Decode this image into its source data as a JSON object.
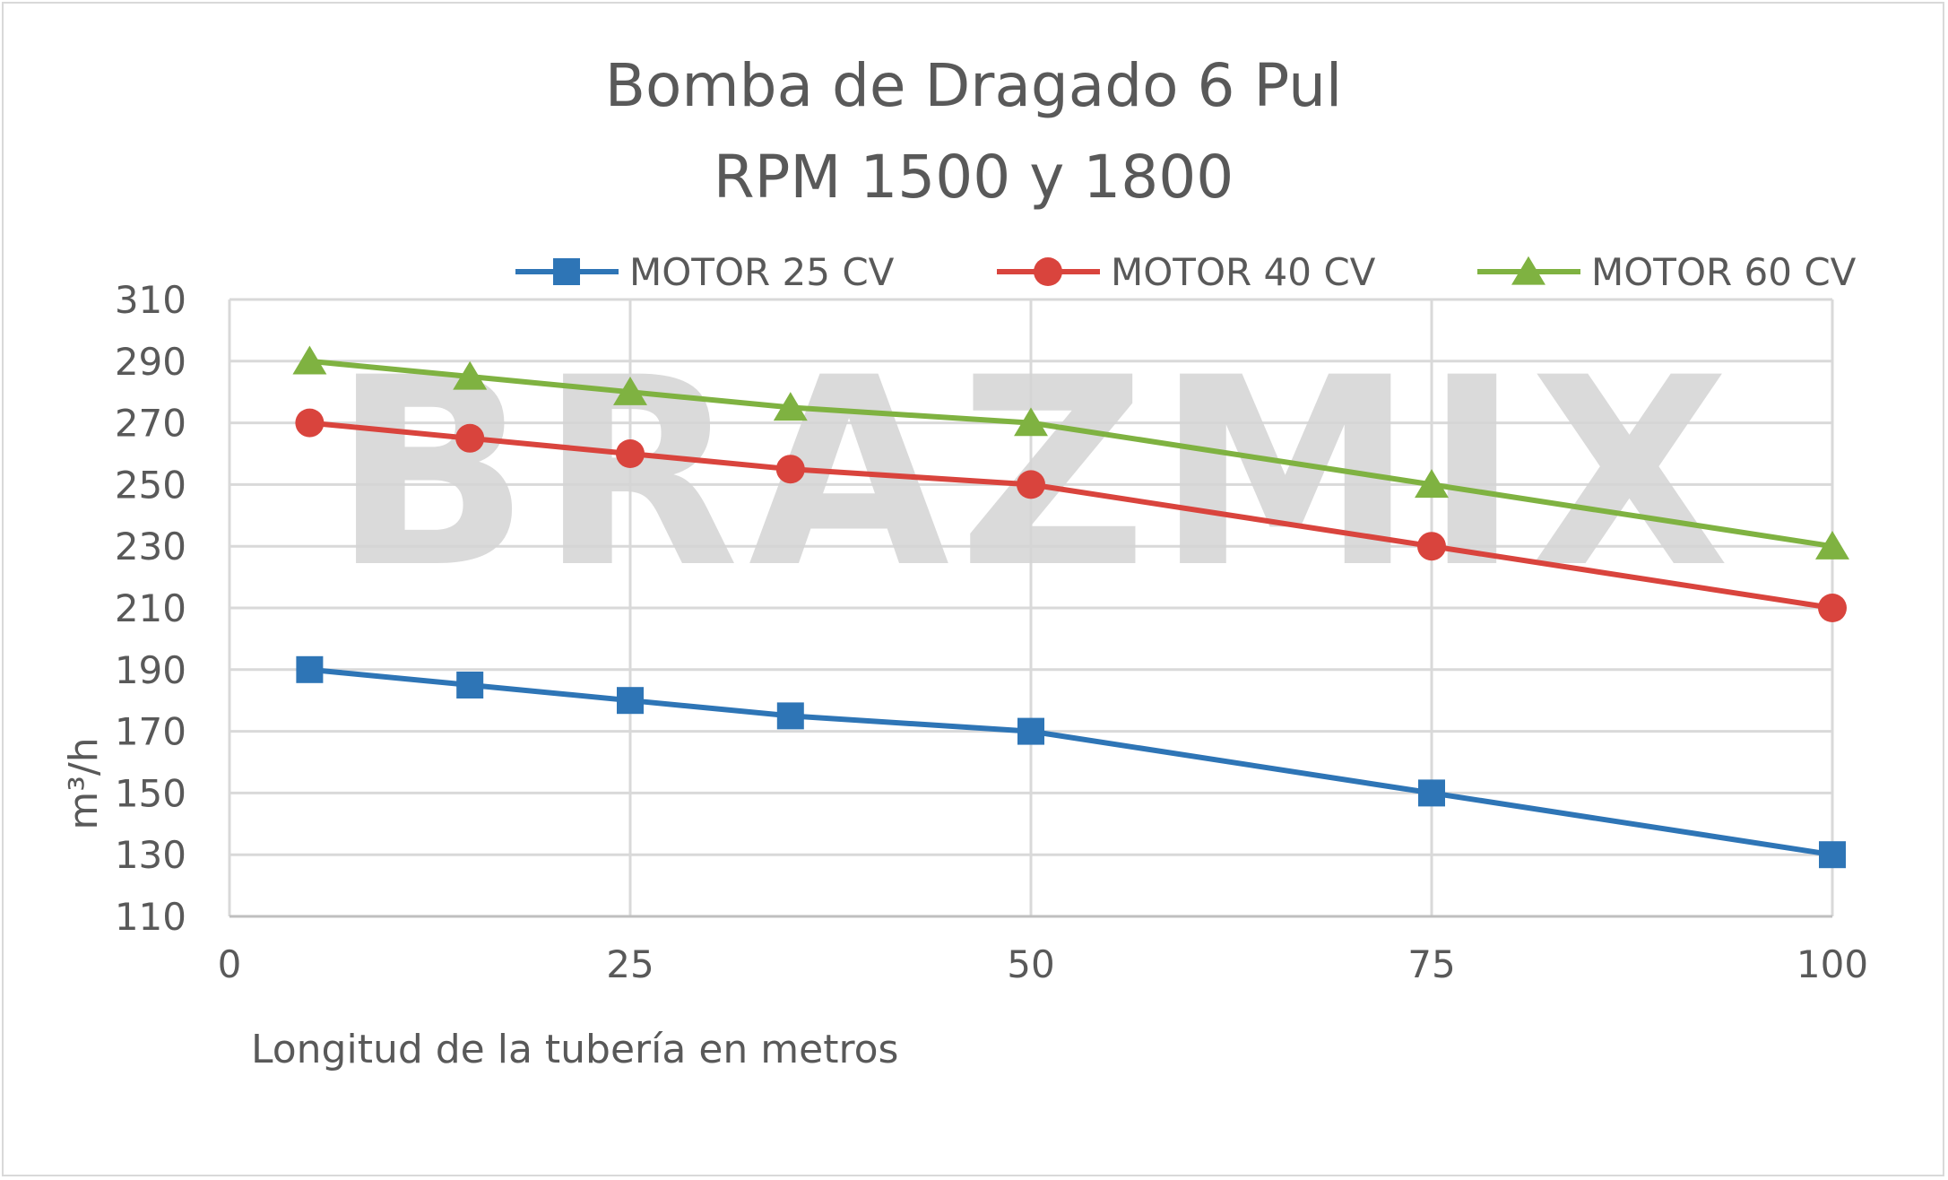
{
  "chart_data": {
    "type": "line",
    "title": "Bomba de Dragado 6 Pul",
    "subtitle": "RPM 1500 y 1800",
    "xlabel": "Longitud de la tubería en metros",
    "ylabel": "m³/h",
    "watermark": "BRAZMIX",
    "xlim": [
      0,
      100
    ],
    "ylim": [
      110,
      310
    ],
    "xticks": [
      0,
      25,
      50,
      75,
      100
    ],
    "yticks": [
      110,
      130,
      150,
      170,
      190,
      210,
      230,
      250,
      270,
      290,
      310
    ],
    "grid": true,
    "legend_position": "top-right",
    "x": [
      5,
      15,
      25,
      35,
      50,
      75,
      100
    ],
    "series": [
      {
        "name": "MOTOR 25 CV",
        "color": "#2e75b6",
        "marker": "square",
        "values": [
          190,
          185,
          180,
          175,
          170,
          150,
          130
        ]
      },
      {
        "name": "MOTOR 40 CV",
        "color": "#d9443d",
        "marker": "circle",
        "values": [
          270,
          265,
          260,
          255,
          250,
          230,
          210
        ]
      },
      {
        "name": "MOTOR 60 CV",
        "color": "#7fb241",
        "marker": "triangle",
        "values": [
          290,
          285,
          280,
          275,
          270,
          250,
          230
        ]
      }
    ]
  }
}
